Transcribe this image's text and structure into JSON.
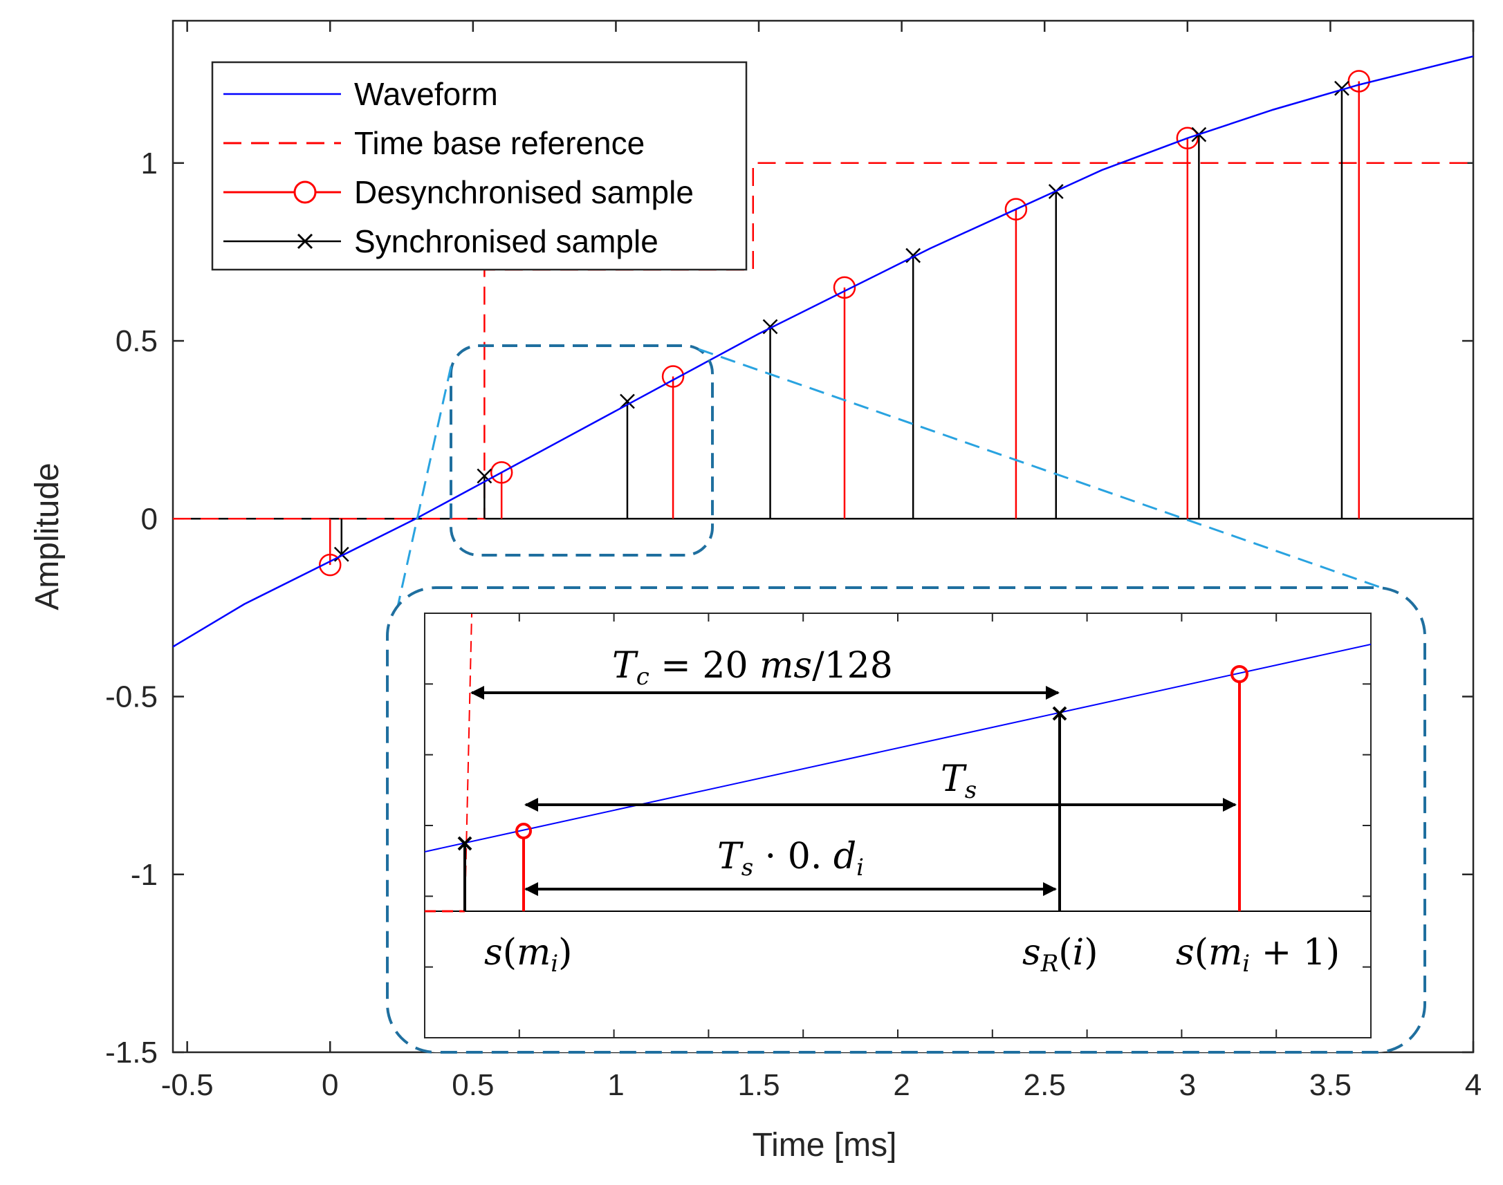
{
  "chart_data": {
    "type": "line",
    "xlabel": "Time [ms]",
    "ylabel": "Amplitude",
    "xlim": [
      -0.55,
      4.0
    ],
    "ylim": [
      -1.5,
      1.4
    ],
    "x_ticks": [
      -0.5,
      0,
      0.5,
      1,
      1.5,
      2,
      2.5,
      3,
      3.5,
      4
    ],
    "x_tick_labels": [
      "-0.5",
      "0",
      "0.5",
      "1",
      "1.5",
      "2",
      "2.5",
      "3",
      "3.5",
      "4"
    ],
    "y_ticks": [
      -1.5,
      -1,
      -0.5,
      0,
      0.5,
      1
    ],
    "y_tick_labels": [
      "-1.5",
      "-1",
      "-0.5",
      "0",
      "0.5",
      "1"
    ],
    "legend": {
      "position": "top-left",
      "entries": [
        {
          "label": "Waveform",
          "color": "#0000ff",
          "style": "solid"
        },
        {
          "label": "Time base reference",
          "color": "#ff0000",
          "style": "dashed"
        },
        {
          "label": "Desynchronised sample",
          "color": "#ff0000",
          "style": "stem-circle"
        },
        {
          "label": "Synchronised sample",
          "color": "#000000",
          "style": "stem-x"
        }
      ]
    },
    "waveform": {
      "name": "Waveform",
      "color": "#0000ff",
      "x": [
        -0.55,
        -0.3,
        0.0,
        0.3,
        0.6,
        0.9,
        1.2,
        1.5,
        1.8,
        2.1,
        2.4,
        2.7,
        3.0,
        3.3,
        3.6,
        4.0
      ],
      "y": [
        -0.36,
        -0.24,
        -0.12,
        0.0,
        0.13,
        0.26,
        0.39,
        0.52,
        0.64,
        0.76,
        0.87,
        0.98,
        1.07,
        1.15,
        1.22,
        1.3
      ]
    },
    "time_base_reference": {
      "name": "Time base reference",
      "color": "#ff0000",
      "x": [
        -0.55,
        0.54,
        0.54,
        1.48,
        1.48,
        4.0
      ],
      "y": [
        0,
        0,
        0.7,
        0.7,
        1.0,
        1.0
      ]
    },
    "desynchronised_samples": {
      "name": "Desynchronised sample",
      "color": "#ff0000",
      "x": [
        0.0,
        0.6,
        1.2,
        1.8,
        2.4,
        3.0,
        3.6
      ],
      "y": [
        -0.13,
        0.13,
        0.4,
        0.65,
        0.87,
        1.07,
        1.23
      ]
    },
    "synchronised_samples": {
      "name": "Synchronised sample",
      "color": "#000000",
      "x": [
        0.04,
        0.54,
        1.04,
        1.54,
        2.04,
        2.54,
        3.04,
        3.54
      ],
      "y": [
        -0.1,
        0.12,
        0.33,
        0.54,
        0.74,
        0.92,
        1.08,
        1.21
      ]
    },
    "inset": {
      "label_Tc": "T_c = 20 ms/128",
      "label_Ts": "T_s",
      "label_Ts_di": "T_s · 0.d_i",
      "label_s_mi": "s(m_i)",
      "label_sR_i": "s_R(i)",
      "label_s_mi1": "s(m_i + 1)"
    }
  },
  "colors": {
    "waveform": "#0000ff",
    "reference": "#ff0000",
    "sync": "#000000",
    "zoom_box": "#1f6f9f",
    "zoom_lines": "#29a3e0"
  }
}
